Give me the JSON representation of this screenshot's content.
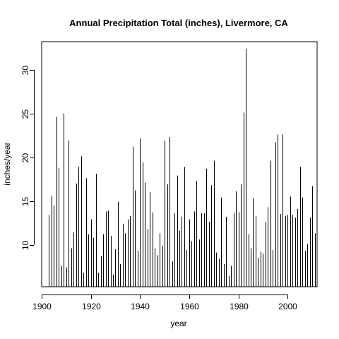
{
  "chart_data": {
    "type": "bar",
    "title": "Annual Precipitation Total (inches), Livermore, CA",
    "xlabel": "year",
    "ylabel": "inches/year",
    "xlim": [
      1900,
      2012
    ],
    "ylim": [
      5.2,
      33.2
    ],
    "x_ticks": [
      1900,
      1920,
      1940,
      1960,
      1980,
      2000
    ],
    "y_ticks": [
      10,
      15,
      20,
      25,
      30
    ],
    "grid": false,
    "legend": "none",
    "line_color": "#000000",
    "x": [
      1903,
      1904,
      1905,
      1906,
      1907,
      1908,
      1909,
      1910,
      1911,
      1912,
      1913,
      1914,
      1915,
      1916,
      1917,
      1918,
      1919,
      1920,
      1921,
      1922,
      1923,
      1924,
      1925,
      1926,
      1927,
      1928,
      1929,
      1930,
      1931,
      1932,
      1933,
      1934,
      1935,
      1936,
      1937,
      1938,
      1939,
      1940,
      1941,
      1942,
      1943,
      1944,
      1945,
      1946,
      1947,
      1948,
      1949,
      1950,
      1951,
      1952,
      1953,
      1954,
      1955,
      1956,
      1957,
      1958,
      1959,
      1960,
      1961,
      1962,
      1963,
      1964,
      1965,
      1966,
      1967,
      1968,
      1969,
      1970,
      1971,
      1972,
      1973,
      1974,
      1975,
      1976,
      1977,
      1978,
      1979,
      1980,
      1981,
      1982,
      1983,
      1984,
      1985,
      1986,
      1987,
      1988,
      1989,
      1990,
      1991,
      1992,
      1993,
      1994,
      1995,
      1996,
      1997,
      1998,
      1999,
      2000,
      2001,
      2002,
      2003,
      2004,
      2005,
      2006,
      2007,
      2008,
      2009,
      2010,
      2011
    ],
    "values": [
      13.4,
      15.6,
      14.5,
      24.6,
      18.8,
      7.6,
      25.0,
      7.4,
      21.9,
      9.6,
      11.4,
      17.0,
      18.9,
      20.1,
      6.8,
      17.6,
      11.2,
      12.9,
      10.8,
      18.1,
      6.8,
      8.7,
      11.2,
      13.8,
      13.9,
      11.0,
      6.6,
      9.5,
      14.9,
      7.8,
      12.4,
      11.3,
      12.9,
      13.3,
      21.2,
      16.2,
      9.3,
      22.1,
      19.4,
      17.1,
      11.8,
      16.0,
      13.7,
      9.6,
      8.8,
      11.3,
      9.9,
      21.9,
      16.9,
      22.3,
      8.1,
      13.6,
      17.9,
      11.6,
      13.2,
      18.9,
      9.4,
      12.9,
      10.4,
      13.8,
      17.3,
      10.6,
      13.6,
      13.6,
      18.7,
      12.6,
      16.8,
      19.6,
      9.1,
      8.4,
      15.4,
      7.8,
      13.2,
      6.4,
      7.6,
      13.6,
      16.1,
      13.7,
      16.9,
      25.1,
      32.4,
      11.2,
      9.6,
      15.3,
      13.3,
      8.5,
      9.2,
      9.0,
      12.6,
      14.3,
      19.6,
      9.4,
      21.7,
      22.6,
      13.5,
      22.6,
      13.3,
      13.4,
      15.5,
      13.4,
      13.1,
      14.1,
      18.9,
      15.4,
      9.3,
      10.1,
      13.1,
      16.7,
      11.3
    ]
  }
}
